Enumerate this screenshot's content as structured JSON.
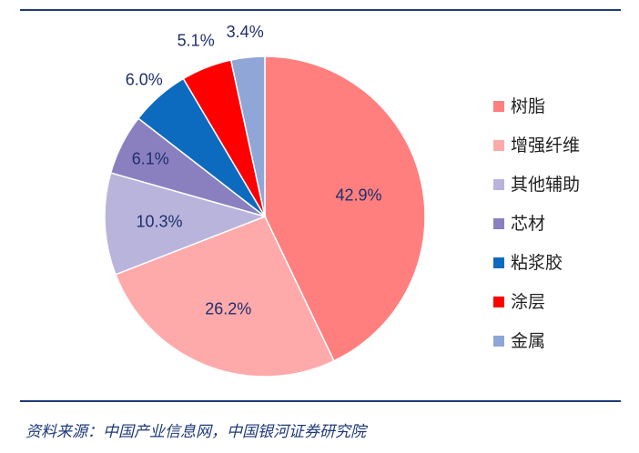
{
  "chart_data": {
    "type": "pie",
    "categories": [
      "树脂",
      "增强纤维",
      "其他辅助",
      "芯材",
      "粘浆胶",
      "涂层",
      "金属"
    ],
    "values": [
      42.9,
      26.2,
      10.3,
      6.1,
      6.0,
      5.1,
      3.4
    ],
    "data_labels": [
      "42.9%",
      "26.2%",
      "10.3%",
      "6.1%",
      "6.0%",
      "5.1%",
      "3.4%"
    ],
    "colors": [
      "#ff7f7f",
      "#ffaaaa",
      "#b8b4dc",
      "#8a80c0",
      "#0d6bbf",
      "#ff0000",
      "#8fa6d6"
    ],
    "label_color": "#1f2f6b",
    "legend_position": "right"
  },
  "footer": {
    "source": "资料来源：中国产业信息网，中国银河证券研究院"
  }
}
